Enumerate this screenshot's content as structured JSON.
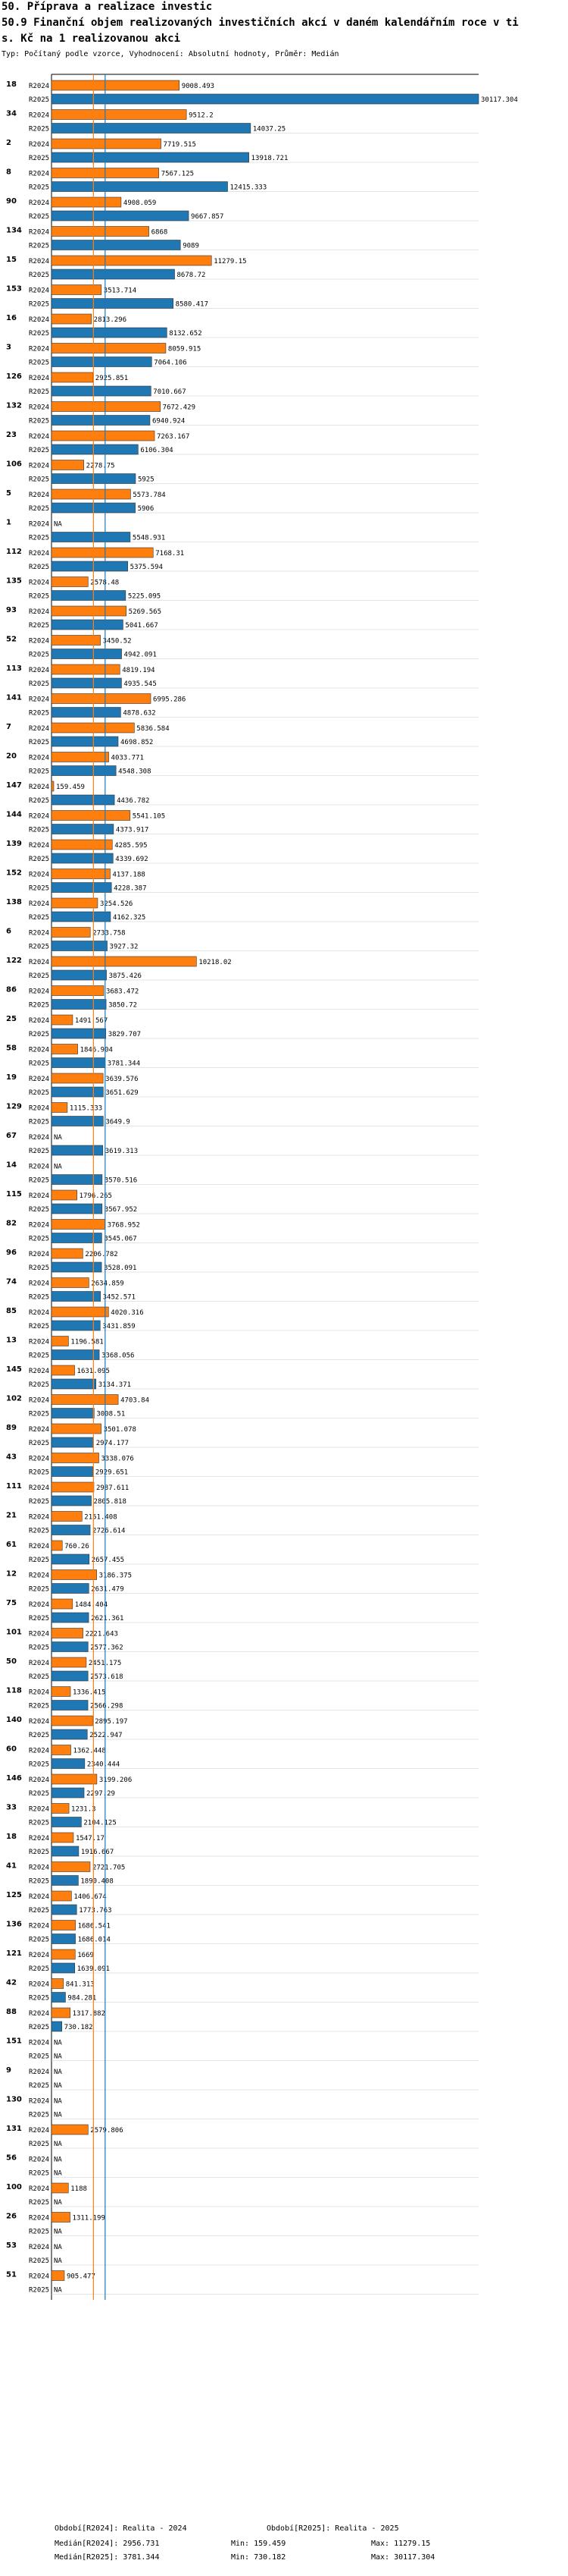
{
  "header": {
    "line1": "50. Příprava a realizace investic",
    "line2": "50.9 Finanční objem realizovaných investičních akcí v daném kalendářním roce v ti",
    "line3": "s. Kč na 1 realizovanou akci",
    "subtitle": "Typ: Počítaný podle vzorce, Vyhodnocení: Absolutní hodnoty, Průměr: Medián"
  },
  "colors": {
    "r2024": "#ff7f0e",
    "r2025": "#1f77b4",
    "median2024": "#ff7f0e",
    "median2025": "#1f77b4",
    "grid": "#c8c8c8"
  },
  "chart_data": {
    "type": "bar",
    "orientation": "horizontal",
    "series_labels": [
      "R2024",
      "R2025"
    ],
    "xlim": [
      0,
      30117.304
    ],
    "medians": {
      "R2024": 2956.731,
      "R2025": 3781.344
    },
    "groups": [
      {
        "id": "18",
        "R2024": 9008.493,
        "R2025": 30117.304
      },
      {
        "id": "34",
        "R2024": 9512.2,
        "R2025": 14037.25
      },
      {
        "id": "2",
        "R2024": 7719.515,
        "R2025": 13918.721
      },
      {
        "id": "8",
        "R2024": 7567.125,
        "R2025": 12415.333
      },
      {
        "id": "90",
        "R2024": 4908.059,
        "R2025": 9667.857
      },
      {
        "id": "134",
        "R2024": 6868,
        "R2025": 9089
      },
      {
        "id": "15",
        "R2024": 11279.15,
        "R2025": 8678.72
      },
      {
        "id": "153",
        "R2024": 3513.714,
        "R2025": 8580.417
      },
      {
        "id": "16",
        "R2024": 2813.296,
        "R2025": 8132.652
      },
      {
        "id": "3",
        "R2024": 8059.915,
        "R2025": 7064.106
      },
      {
        "id": "126",
        "R2024": 2925.851,
        "R2025": 7010.667
      },
      {
        "id": "132",
        "R2024": 7672.429,
        "R2025": 6940.924
      },
      {
        "id": "23",
        "R2024": 7263.167,
        "R2025": 6106.304
      },
      {
        "id": "106",
        "R2024": 2278.75,
        "R2025": 5925
      },
      {
        "id": "5",
        "R2024": 5573.784,
        "R2025": 5906
      },
      {
        "id": "1",
        "R2024": null,
        "R2025": 5548.931
      },
      {
        "id": "112",
        "R2024": 7168.31,
        "R2025": 5375.594
      },
      {
        "id": "135",
        "R2024": 2578.48,
        "R2025": 5225.095
      },
      {
        "id": "93",
        "R2024": 5269.565,
        "R2025": 5041.667
      },
      {
        "id": "52",
        "R2024": 3450.52,
        "R2025": 4942.091
      },
      {
        "id": "113",
        "R2024": 4819.194,
        "R2025": 4935.545
      },
      {
        "id": "141",
        "R2024": 6995.286,
        "R2025": 4878.632
      },
      {
        "id": "7",
        "R2024": 5836.584,
        "R2025": 4698.852
      },
      {
        "id": "20",
        "R2024": 4033.771,
        "R2025": 4548.308
      },
      {
        "id": "147",
        "R2024": 159.459,
        "R2025": 4436.782
      },
      {
        "id": "144",
        "R2024": 5541.105,
        "R2025": 4373.917
      },
      {
        "id": "139",
        "R2024": 4285.595,
        "R2025": 4339.692
      },
      {
        "id": "152",
        "R2024": 4137.188,
        "R2025": 4228.387
      },
      {
        "id": "138",
        "R2024": 3254.526,
        "R2025": 4162.325
      },
      {
        "id": "6",
        "R2024": 2733.758,
        "R2025": 3927.32
      },
      {
        "id": "122",
        "R2024": 10218.02,
        "R2025": 3875.426
      },
      {
        "id": "86",
        "R2024": 3683.472,
        "R2025": 3850.72
      },
      {
        "id": "25",
        "R2024": 1491.567,
        "R2025": 3829.707
      },
      {
        "id": "58",
        "R2024": 1846.904,
        "R2025": 3781.344
      },
      {
        "id": "19",
        "R2024": 3639.576,
        "R2025": 3651.629
      },
      {
        "id": "129",
        "R2024": 1115.333,
        "R2025": 3649.9
      },
      {
        "id": "67",
        "R2024": null,
        "R2025": 3619.313
      },
      {
        "id": "14",
        "R2024": null,
        "R2025": 3570.516
      },
      {
        "id": "115",
        "R2024": 1796.265,
        "R2025": 3567.952
      },
      {
        "id": "82",
        "R2024": 3768.952,
        "R2025": 3545.067
      },
      {
        "id": "96",
        "R2024": 2206.782,
        "R2025": 3528.091
      },
      {
        "id": "74",
        "R2024": 2634.859,
        "R2025": 3452.571
      },
      {
        "id": "85",
        "R2024": 4020.316,
        "R2025": 3431.859
      },
      {
        "id": "13",
        "R2024": 1196.581,
        "R2025": 3368.056
      },
      {
        "id": "145",
        "R2024": 1631.095,
        "R2025": 3134.371
      },
      {
        "id": "102",
        "R2024": 4703.84,
        "R2025": 3008.51
      },
      {
        "id": "89",
        "R2024": 3501.078,
        "R2025": 2974.177
      },
      {
        "id": "43",
        "R2024": 3338.076,
        "R2025": 2929.651
      },
      {
        "id": "111",
        "R2024": 2987.611,
        "R2025": 2805.818
      },
      {
        "id": "21",
        "R2024": 2151.408,
        "R2025": 2726.614
      },
      {
        "id": "61",
        "R2024": 760.26,
        "R2025": 2657.455
      },
      {
        "id": "12",
        "R2024": 3186.375,
        "R2025": 2631.479
      },
      {
        "id": "75",
        "R2024": 1484.404,
        "R2025": 2621.361
      },
      {
        "id": "101",
        "R2024": 2221.643,
        "R2025": 2577.362
      },
      {
        "id": "50",
        "R2024": 2451.175,
        "R2025": 2573.618
      },
      {
        "id": "118",
        "R2024": 1336.415,
        "R2025": 2566.298
      },
      {
        "id": "140",
        "R2024": 2895.197,
        "R2025": 2522.947
      },
      {
        "id": "60",
        "R2024": 1362.448,
        "R2025": 2340.444
      },
      {
        "id": "146",
        "R2024": 3199.206,
        "R2025": 2297.29
      },
      {
        "id": "33",
        "R2024": 1231.3,
        "R2025": 2104.125
      },
      {
        "id": "18b",
        "label": "18",
        "R2024": 1547.17,
        "R2025": 1916.667
      },
      {
        "id": "41",
        "R2024": 2721.705,
        "R2025": 1890.408
      },
      {
        "id": "125",
        "R2024": 1406.674,
        "R2025": 1773.763
      },
      {
        "id": "136",
        "R2024": 1686.541,
        "R2025": 1686.014
      },
      {
        "id": "121",
        "R2024": 1669,
        "R2025": 1639.091
      },
      {
        "id": "42",
        "R2024": 841.313,
        "R2025": 984.281
      },
      {
        "id": "88",
        "R2024": 1317.882,
        "R2025": 730.182
      },
      {
        "id": "151",
        "R2024": null,
        "R2025": null
      },
      {
        "id": "9",
        "R2024": null,
        "R2025": null
      },
      {
        "id": "130",
        "R2024": null,
        "R2025": null
      },
      {
        "id": "131",
        "R2024": 2579.806,
        "R2025": null
      },
      {
        "id": "56",
        "R2024": null,
        "R2025": null
      },
      {
        "id": "100",
        "R2024": 1188,
        "R2025": null
      },
      {
        "id": "26",
        "R2024": 1311.199,
        "R2025": null
      },
      {
        "id": "53",
        "R2024": null,
        "R2025": null
      },
      {
        "id": "51",
        "R2024": 905.477,
        "R2025": null
      }
    ]
  },
  "na_text": "NA",
  "footer": {
    "period2024": "Období[R2024]: Realita - 2024",
    "period2025": "Období[R2025]: Realita - 2025",
    "median2024": "Medián[R2024]: 2956.731",
    "median2025": "Medián[R2025]: 3781.344",
    "min2024": "Min: 159.459",
    "min2025": "Min: 730.182",
    "max2024": "Max: 11279.15",
    "max2025": "Max: 30117.304"
  }
}
